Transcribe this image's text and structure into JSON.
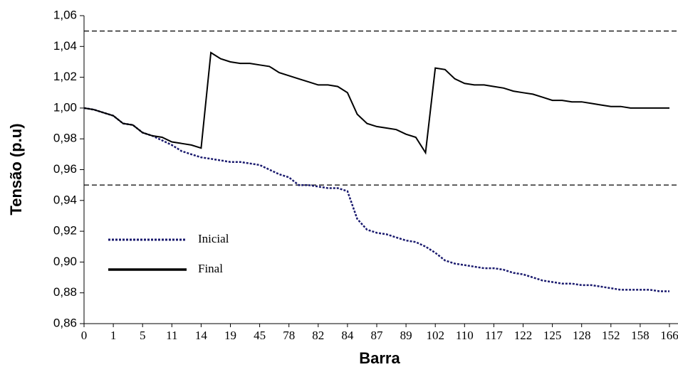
{
  "chart_data": {
    "type": "line",
    "xlabel": "Barra",
    "ylabel": "Tensão (p.u)",
    "categories": [
      "0",
      null,
      null,
      "1",
      null,
      null,
      "5",
      null,
      null,
      "11",
      null,
      null,
      "14",
      null,
      null,
      "19",
      null,
      null,
      "45",
      null,
      null,
      "78",
      null,
      null,
      "82",
      null,
      null,
      "84",
      null,
      null,
      "87",
      null,
      null,
      "89",
      null,
      null,
      "102",
      null,
      null,
      "110",
      null,
      null,
      "117",
      null,
      null,
      "122",
      null,
      null,
      "125",
      null,
      null,
      "128",
      null,
      null,
      "152",
      null,
      null,
      "158",
      null,
      null,
      "166"
    ],
    "series": [
      {
        "name": "Inicial",
        "color": "#1a1a6e",
        "style": "dotted",
        "values": [
          1.0,
          0.999,
          0.997,
          0.995,
          0.99,
          0.989,
          0.984,
          0.982,
          0.979,
          0.976,
          0.972,
          0.97,
          0.968,
          0.967,
          0.966,
          0.965,
          0.965,
          0.964,
          0.963,
          0.96,
          0.957,
          0.955,
          0.95,
          0.95,
          0.949,
          0.948,
          0.948,
          0.946,
          0.928,
          0.921,
          0.919,
          0.918,
          0.916,
          0.914,
          0.913,
          0.91,
          0.906,
          0.901,
          0.899,
          0.898,
          0.897,
          0.896,
          0.896,
          0.895,
          0.893,
          0.892,
          0.89,
          0.888,
          0.887,
          0.886,
          0.886,
          0.885,
          0.885,
          0.884,
          0.883,
          0.882,
          0.882,
          0.882,
          0.882,
          0.881,
          0.881
        ]
      },
      {
        "name": "Final",
        "color": "#000000",
        "style": "solid",
        "values": [
          1.0,
          0.999,
          0.997,
          0.995,
          0.99,
          0.989,
          0.984,
          0.982,
          0.981,
          0.978,
          0.977,
          0.976,
          0.974,
          1.036,
          1.032,
          1.03,
          1.029,
          1.029,
          1.028,
          1.027,
          1.023,
          1.021,
          1.019,
          1.017,
          1.015,
          1.015,
          1.014,
          1.01,
          0.996,
          0.99,
          0.988,
          0.987,
          0.986,
          0.983,
          0.981,
          0.971,
          1.026,
          1.025,
          1.019,
          1.016,
          1.015,
          1.015,
          1.014,
          1.013,
          1.011,
          1.01,
          1.009,
          1.007,
          1.005,
          1.005,
          1.004,
          1.004,
          1.003,
          1.002,
          1.001,
          1.001,
          1.0,
          1.0,
          1.0,
          1.0,
          1.0
        ]
      }
    ],
    "reference_lines": [
      1.05,
      0.95
    ],
    "ylim": [
      0.86,
      1.06
    ],
    "yticks": [
      {
        "value": 0.86,
        "label": "0,86"
      },
      {
        "value": 0.88,
        "label": "0,88"
      },
      {
        "value": 0.9,
        "label": "0,90"
      },
      {
        "value": 0.92,
        "label": "0,92"
      },
      {
        "value": 0.94,
        "label": "0,94"
      },
      {
        "value": 0.96,
        "label": "0,96"
      },
      {
        "value": 0.98,
        "label": "0,98"
      },
      {
        "value": 1.0,
        "label": "1,00"
      },
      {
        "value": 1.02,
        "label": "1,02"
      },
      {
        "value": 1.04,
        "label": "1,04"
      },
      {
        "value": 1.06,
        "label": "1,06"
      }
    ],
    "grid": false,
    "legend": "lower left"
  }
}
